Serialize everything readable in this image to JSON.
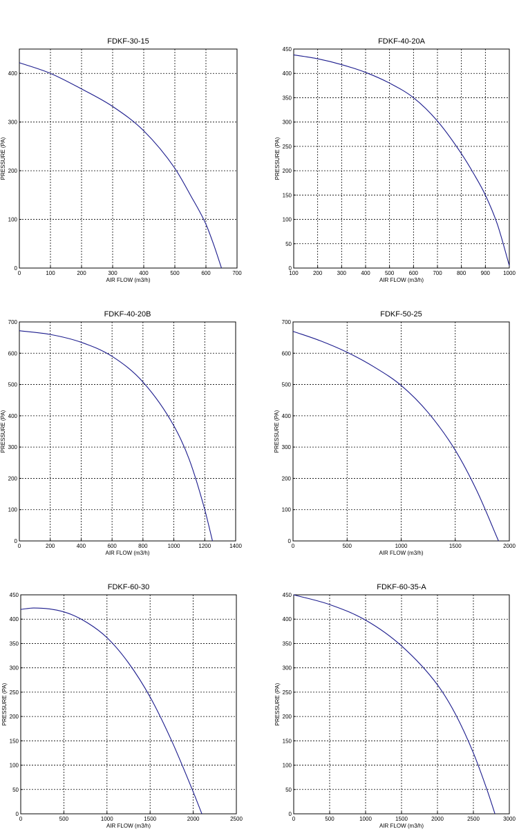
{
  "chart_data": [
    {
      "type": "line",
      "title": "FDKF-30-15",
      "xlabel": "AIR FLOW (m3/h)",
      "ylabel": "PRESSURE (PA)",
      "xlim": [
        0,
        700
      ],
      "ylim": [
        0,
        450
      ],
      "xticks": [
        0,
        100,
        200,
        300,
        400,
        500,
        600,
        700
      ],
      "yticks": [
        0,
        100,
        200,
        300,
        400
      ],
      "grid": true,
      "series": [
        {
          "color": "#1a1a8c",
          "x": [
            0,
            100,
            200,
            300,
            400,
            500,
            550,
            600,
            625,
            650
          ],
          "y": [
            422,
            400,
            368,
            332,
            282,
            205,
            150,
            90,
            48,
            0
          ]
        }
      ]
    },
    {
      "type": "line",
      "title": "FDKF-40-20A",
      "xlabel": "AIR FLOW (m3/h)",
      "ylabel": "PRESSURE (PA)",
      "xlim": [
        100,
        1000
      ],
      "ylim": [
        0,
        450
      ],
      "xticks": [
        100,
        200,
        300,
        400,
        500,
        600,
        700,
        800,
        900,
        1000
      ],
      "yticks": [
        0,
        50,
        100,
        150,
        200,
        250,
        300,
        350,
        400,
        450
      ],
      "grid": true,
      "series": [
        {
          "color": "#1a1a8c",
          "x": [
            100,
            200,
            300,
            400,
            500,
            600,
            700,
            800,
            850,
            900,
            950,
            1000
          ],
          "y": [
            438,
            430,
            418,
            402,
            380,
            350,
            302,
            235,
            195,
            150,
            90,
            5
          ]
        }
      ]
    },
    {
      "type": "line",
      "title": "FDKF-40-20B",
      "xlabel": "AIR FLOW (m3/h)",
      "ylabel": "PRESSURE (PA)",
      "xlim": [
        0,
        1400
      ],
      "ylim": [
        0,
        700
      ],
      "xticks": [
        0,
        200,
        400,
        600,
        800,
        1000,
        1200,
        1400
      ],
      "yticks": [
        0,
        100,
        200,
        300,
        400,
        500,
        600,
        700
      ],
      "grid": true,
      "series": [
        {
          "color": "#1a1a8c",
          "x": [
            0,
            200,
            400,
            600,
            800,
            1000,
            1100,
            1200,
            1250
          ],
          "y": [
            672,
            660,
            635,
            590,
            508,
            368,
            260,
            100,
            0
          ]
        }
      ]
    },
    {
      "type": "line",
      "title": "FDKF-50-25",
      "xlabel": "AIR FLOW (m3/h)",
      "ylabel": "PRESSURE (PA)",
      "xlim": [
        0,
        2000
      ],
      "ylim": [
        0,
        700
      ],
      "xticks": [
        0,
        500,
        1000,
        1500,
        2000
      ],
      "yticks": [
        0,
        100,
        200,
        300,
        400,
        500,
        600,
        700
      ],
      "grid": true,
      "series": [
        {
          "color": "#1a1a8c",
          "x": [
            0,
            250,
            500,
            750,
            1000,
            1250,
            1500,
            1700,
            1900
          ],
          "y": [
            670,
            640,
            603,
            556,
            497,
            410,
            290,
            160,
            0
          ]
        }
      ]
    },
    {
      "type": "line",
      "title": "FDKF-60-30",
      "xlabel": "AIR FLOW (m3/h)",
      "ylabel": "PRESSURE (PA)",
      "xlim": [
        0,
        2500
      ],
      "ylim": [
        0,
        450
      ],
      "xticks": [
        0,
        500,
        1000,
        1500,
        2000,
        2500
      ],
      "yticks": [
        0,
        50,
        100,
        150,
        200,
        250,
        300,
        350,
        400,
        450
      ],
      "grid": true,
      "series": [
        {
          "color": "#1a1a8c",
          "x": [
            0,
            150,
            500,
            750,
            1000,
            1250,
            1500,
            1750,
            2000,
            2100
          ],
          "y": [
            420,
            423,
            415,
            395,
            362,
            310,
            240,
            150,
            45,
            0
          ]
        }
      ]
    },
    {
      "type": "line",
      "title": "FDKF-60-35-A",
      "xlabel": "AIR FLOW (m3/h)",
      "ylabel": "PRESSURE (PA)",
      "xlim": [
        0,
        3000
      ],
      "ylim": [
        0,
        450
      ],
      "xticks": [
        0,
        500,
        1000,
        1500,
        2000,
        2500,
        3000
      ],
      "yticks": [
        0,
        50,
        100,
        150,
        200,
        250,
        300,
        350,
        400,
        450
      ],
      "grid": true,
      "series": [
        {
          "color": "#1a1a8c",
          "x": [
            0,
            500,
            1000,
            1500,
            2000,
            2250,
            2500,
            2700,
            2800
          ],
          "y": [
            450,
            430,
            398,
            345,
            265,
            205,
            125,
            45,
            0
          ]
        }
      ]
    }
  ]
}
